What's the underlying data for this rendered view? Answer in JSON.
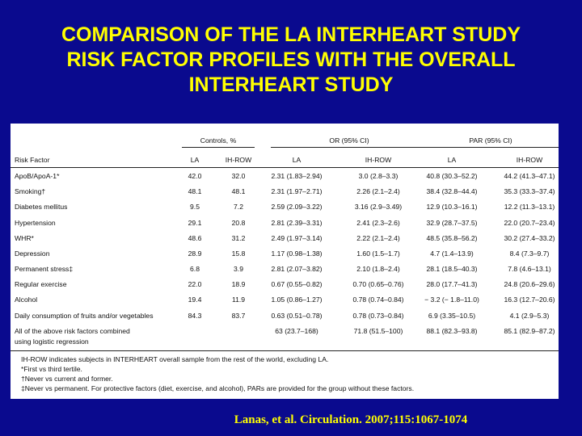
{
  "slide": {
    "title_lines": [
      "COMPARISON OF THE LA INTERHEART STUDY",
      "RISK FACTOR PROFILES WITH THE OVERALL",
      "INTERHEART STUDY"
    ],
    "citation": "Lanas, et al. Circulation. 2007;115:1067-1074"
  },
  "table": {
    "group_headers": [
      "Controls, %",
      "OR (95% CI)",
      "PAR (95% CI)"
    ],
    "columns": [
      "Risk Factor",
      "LA",
      "IH-ROW",
      "LA",
      "IH-ROW",
      "LA",
      "IH-ROW"
    ],
    "rows": [
      {
        "factor": "ApoB/ApoA-1*",
        "ctrl_la": "42.0",
        "ctrl_ih": "32.0",
        "or_la": "2.31 (1.83–2.94)",
        "or_ih": "3.0 (2.8–3.3)",
        "par_la": "40.8 (30.3–52.2)",
        "par_ih": "44.2 (41.3–47.1)"
      },
      {
        "factor": "Smoking†",
        "ctrl_la": "48.1",
        "ctrl_ih": "48.1",
        "or_la": "2.31 (1.97–2.71)",
        "or_ih": "2.26 (2.1–2.4)",
        "par_la": "38.4 (32.8–44.4)",
        "par_ih": "35.3 (33.3–37.4)"
      },
      {
        "factor": "Diabetes mellitus",
        "ctrl_la": "9.5",
        "ctrl_ih": "7.2",
        "or_la": "2.59 (2.09–3.22)",
        "or_ih": "3.16 (2.9–3.49)",
        "par_la": "12.9 (10.3–16.1)",
        "par_ih": "12.2 (11.3–13.1)"
      },
      {
        "factor": "Hypertension",
        "ctrl_la": "29.1",
        "ctrl_ih": "20.8",
        "or_la": "2.81 (2.39–3.31)",
        "or_ih": "2.41 (2.3–2.6)",
        "par_la": "32.9 (28.7–37.5)",
        "par_ih": "22.0 (20.7–23.4)"
      },
      {
        "factor": "WHR*",
        "ctrl_la": "48.6",
        "ctrl_ih": "31.2",
        "or_la": "2.49 (1.97–3.14)",
        "or_ih": "2.22 (2.1–2.4)",
        "par_la": "48.5 (35.8–56.2)",
        "par_ih": "30.2 (27.4–33.2)"
      },
      {
        "factor": "Depression",
        "ctrl_la": "28.9",
        "ctrl_ih": "15.8",
        "or_la": "1.17 (0.98–1.38)",
        "or_ih": "1.60 (1.5–1.7)",
        "par_la": "4.7 (1.4–13.9)",
        "par_ih": "8.4 (7.3–9.7)"
      },
      {
        "factor": "Permanent stress‡",
        "ctrl_la": "6.8",
        "ctrl_ih": "3.9",
        "or_la": "2.81 (2.07–3.82)",
        "or_ih": "2.10 (1.8–2.4)",
        "par_la": "28.1 (18.5–40.3)",
        "par_ih": "7.8 (4.6–13.1)"
      },
      {
        "factor": "Regular exercise",
        "ctrl_la": "22.0",
        "ctrl_ih": "18.9",
        "or_la": "0.67 (0.55–0.82)",
        "or_ih": "0.70 (0.65–0.76)",
        "par_la": "28.0 (17.7–41.3)",
        "par_ih": "24.8 (20.6–29.6)"
      },
      {
        "factor": "Alcohol",
        "ctrl_la": "19.4",
        "ctrl_ih": "11.9",
        "or_la": "1.05 (0.86–1.27)",
        "or_ih": "0.78 (0.74–0.84)",
        "par_la": "− 3.2 (− 1.8–11.0)",
        "par_ih": "16.3 (12.7–20.6)"
      },
      {
        "factor": "Daily consumption of fruits and/or vegetables",
        "ctrl_la": "84.3",
        "ctrl_ih": "83.7",
        "or_la": "0.63 (0.51–0.78)",
        "or_ih": "0.78 (0.73–0.84)",
        "par_la": "6.9 (3.35–10.5)",
        "par_ih": "4.1 (2.9–5.3)"
      }
    ],
    "combined_row": {
      "factor_lines": [
        "All of the above risk factors combined",
        "using logistic regression"
      ],
      "or_la": "63 (23.7–168)",
      "or_ih": "71.8 (51.5–100)",
      "par_la": "88.1 (82.3–93.8)",
      "par_ih": "85.1 (82.9–87.2)"
    },
    "footnotes": [
      "IH-ROW indicates subjects in INTERHEART overall sample from the rest of the world, excluding LA.",
      "*First vs third tertile.",
      "†Never vs current and former.",
      "‡Never vs permanent. For protective factors (diet, exercise, and alcohol), PARs are provided for the group without these factors."
    ]
  }
}
